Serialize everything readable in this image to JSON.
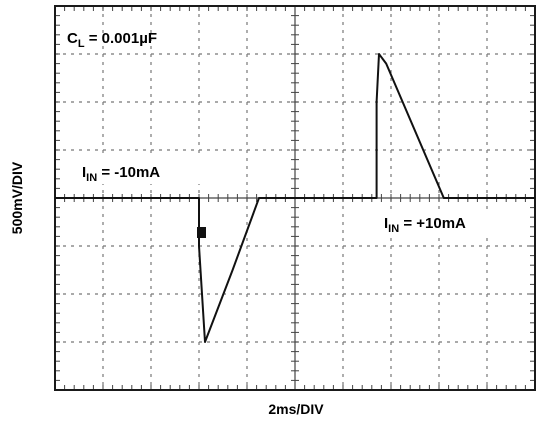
{
  "chart_data": {
    "type": "line",
    "annotations": {
      "load_cap": {
        "prefix": "C",
        "sub": "L",
        "text": " = 0.001µF"
      },
      "i_in_neg": {
        "prefix": "I",
        "sub": "IN",
        "text": " = -10mA"
      },
      "i_in_pos": {
        "prefix": "I",
        "sub": "IN",
        "text": " = +10mA"
      }
    },
    "xlabel": "2ms/DIV",
    "ylabel": "500mV/DIV",
    "grid": true,
    "xlim": [
      0,
      20
    ],
    "ylim": [
      -2000,
      2000
    ],
    "trace_color": "#111111",
    "series": [
      {
        "x": [
          0,
          2,
          4,
          6.0,
          6.0,
          6.25,
          7.4,
          8.5,
          13.4,
          13.4,
          13.5,
          13.8,
          16.2,
          20
        ],
        "y": [
          0,
          0,
          0,
          0,
          -500,
          -1500,
          -750,
          0,
          0,
          1000,
          1500,
          1400,
          0,
          0
        ]
      }
    ]
  }
}
